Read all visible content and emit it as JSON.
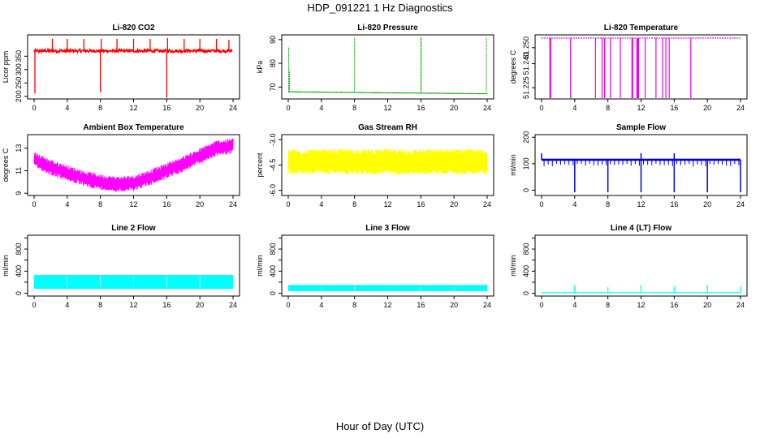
{
  "title": "HDP_091221  1 Hz Diagnostics",
  "xlabel": "Hour of Day (UTC)",
  "chart_data": [
    {
      "id": "co2",
      "type": "line",
      "title": "Li-820 CO2",
      "ylabel": "Licor ppm",
      "color": "#ff0000",
      "xlim": [
        0,
        24
      ],
      "ylim": [
        190,
        430
      ],
      "xticks": [
        0,
        4,
        8,
        12,
        16,
        20,
        24
      ],
      "yticks": [
        200,
        250,
        300,
        350
      ],
      "ytick_labels": [
        "200",
        "250",
        "300",
        "350"
      ],
      "base": 370,
      "noise": 6,
      "spikes": [
        {
          "x": 0.1,
          "y": 210
        },
        {
          "x": 2.2,
          "y": 415
        },
        {
          "x": 4.0,
          "y": 415
        },
        {
          "x": 6.0,
          "y": 415
        },
        {
          "x": 8.0,
          "y": 215
        },
        {
          "x": 8.1,
          "y": 415
        },
        {
          "x": 10.0,
          "y": 415
        },
        {
          "x": 12.0,
          "y": 415
        },
        {
          "x": 14.0,
          "y": 415
        },
        {
          "x": 16.0,
          "y": 195
        },
        {
          "x": 16.1,
          "y": 418
        },
        {
          "x": 18.1,
          "y": 415
        },
        {
          "x": 20.0,
          "y": 415
        },
        {
          "x": 22.0,
          "y": 415
        },
        {
          "x": 23.5,
          "y": 412
        }
      ]
    },
    {
      "id": "pressure",
      "type": "line",
      "title": "Li-820 Pressure",
      "ylabel": "kPa",
      "color": "#00aa00",
      "xlim": [
        0,
        24
      ],
      "ylim": [
        65,
        92
      ],
      "xticks": [
        0,
        4,
        8,
        12,
        16,
        20,
        24
      ],
      "yticks": [
        70,
        80,
        90
      ],
      "ytick_labels": [
        "70",
        "80",
        "90"
      ],
      "base_start": 68.0,
      "base_end": 67.2,
      "noise": 0.2,
      "spikes": [
        {
          "x": 0.05,
          "y": 87
        },
        {
          "x": 0.15,
          "y": 77
        },
        {
          "x": 8.0,
          "y": 91
        },
        {
          "x": 16.0,
          "y": 91
        },
        {
          "x": 16.05,
          "y": 91
        },
        {
          "x": 23.9,
          "y": 91
        }
      ]
    },
    {
      "id": "temperature",
      "type": "line",
      "title": "Li-820 Temperature",
      "ylabel": "degrees C",
      "color": "#ee00ee",
      "xlim": [
        0,
        24
      ],
      "ylim": [
        51.218,
        51.258
      ],
      "xticks": [
        0,
        4,
        8,
        12,
        16,
        20,
        24
      ],
      "yticks": [
        51.225,
        51.24,
        51.25
      ],
      "ytick_labels": [
        "51.225",
        "51.240",
        "51.250"
      ],
      "base": 51.256,
      "drops": [
        1.0,
        1.1,
        3.5,
        6.5,
        7.3,
        7.6,
        8.3,
        9.5,
        10.9,
        11.0,
        11.5,
        11.6,
        11.7,
        12.5,
        13.8,
        14.6,
        15.0,
        15.4,
        18.0
      ]
    },
    {
      "id": "ambient",
      "type": "line",
      "title": "Ambient Box Temperature",
      "ylabel": "degrees C",
      "color": "#ff00ff",
      "xlim": [
        0,
        24
      ],
      "ylim": [
        8.8,
        14.2
      ],
      "xticks": [
        0,
        4,
        8,
        12,
        16,
        20,
        24
      ],
      "yticks": [
        9,
        11,
        13
      ],
      "ytick_labels": [
        "9",
        "11",
        "13"
      ],
      "curve": [
        [
          0,
          12.0
        ],
        [
          2,
          11.3
        ],
        [
          4,
          10.8
        ],
        [
          6,
          10.3
        ],
        [
          8,
          10.0
        ],
        [
          10,
          9.8
        ],
        [
          12,
          9.9
        ],
        [
          14,
          10.4
        ],
        [
          16,
          11.0
        ],
        [
          18,
          11.6
        ],
        [
          20,
          12.3
        ],
        [
          22,
          13.0
        ],
        [
          24,
          13.2
        ]
      ],
      "band": 1.4
    },
    {
      "id": "rh",
      "type": "line",
      "title": "Gas Stream RH",
      "ylabel": "percent",
      "color": "#ffff00",
      "xlim": [
        0,
        24
      ],
      "ylim": [
        -6.3,
        -2.7
      ],
      "xticks": [
        0,
        4,
        8,
        12,
        16,
        20,
        24
      ],
      "yticks": [
        -6.0,
        -4.5,
        -3.0
      ],
      "ytick_labels": [
        "-6.0",
        "-4.5",
        "-3.0"
      ],
      "center": -4.3,
      "band": 1.5
    },
    {
      "id": "sample",
      "type": "line",
      "title": "Sample Flow",
      "ylabel": "ml/min",
      "color": "#0000dd",
      "xlim": [
        0,
        24
      ],
      "ylim": [
        -20,
        210
      ],
      "xticks": [
        0,
        4,
        8,
        12,
        16,
        20,
        24
      ],
      "yticks": [
        0,
        100,
        200
      ],
      "ytick_labels": [
        "0",
        "100",
        "200"
      ],
      "base": 115,
      "band": 8,
      "deep_drops": [
        4.0,
        8.0,
        12.0,
        16.0,
        20.0,
        24.0
      ],
      "spikes": [
        0.0,
        12.0,
        16.0
      ]
    },
    {
      "id": "line2",
      "type": "area",
      "title": "Line 2 Flow",
      "ylabel": "ml/min",
      "color": "#00ffff",
      "xlim": [
        0,
        24
      ],
      "ylim": [
        -50,
        1050
      ],
      "xticks": [
        0,
        4,
        8,
        12,
        16,
        20,
        24
      ],
      "yticks": [
        0,
        200,
        400,
        600,
        800,
        1000
      ],
      "ytick_labels": [
        "0",
        "400",
        "800"
      ],
      "low": 80,
      "high": 330,
      "gaps": [
        4.0,
        8.0,
        12.0,
        16.0,
        20.0
      ]
    },
    {
      "id": "line3",
      "type": "area",
      "title": "Line 3 Flow",
      "ylabel": "ml/min",
      "color": "#00ffff",
      "xlim": [
        0,
        24
      ],
      "ylim": [
        -50,
        1050
      ],
      "xticks": [
        0,
        4,
        8,
        12,
        16,
        20,
        24
      ],
      "yticks": [
        0,
        200,
        400,
        600,
        800,
        1000
      ],
      "ytick_labels": [
        "0",
        "400",
        "800"
      ],
      "low": 40,
      "high": 150,
      "gaps": [
        4.0,
        8.0,
        12.0,
        16.0,
        20.0
      ]
    },
    {
      "id": "line4",
      "type": "line",
      "title": "Line 4 (LT) Flow",
      "ylabel": "ml/min",
      "color": "#00ffff",
      "xlim": [
        0,
        24
      ],
      "ylim": [
        -50,
        1050
      ],
      "xticks": [
        0,
        4,
        8,
        12,
        16,
        20,
        24
      ],
      "yticks": [
        0,
        200,
        400,
        600,
        800,
        1000
      ],
      "ytick_labels": [
        "0",
        "400",
        "800"
      ],
      "base": 10,
      "spikes": [
        {
          "x": 4.0,
          "y": 150
        },
        {
          "x": 8.0,
          "y": 110
        },
        {
          "x": 12.0,
          "y": 150
        },
        {
          "x": 16.0,
          "y": 120
        },
        {
          "x": 20.0,
          "y": 150
        },
        {
          "x": 24.0,
          "y": 120
        }
      ]
    }
  ]
}
